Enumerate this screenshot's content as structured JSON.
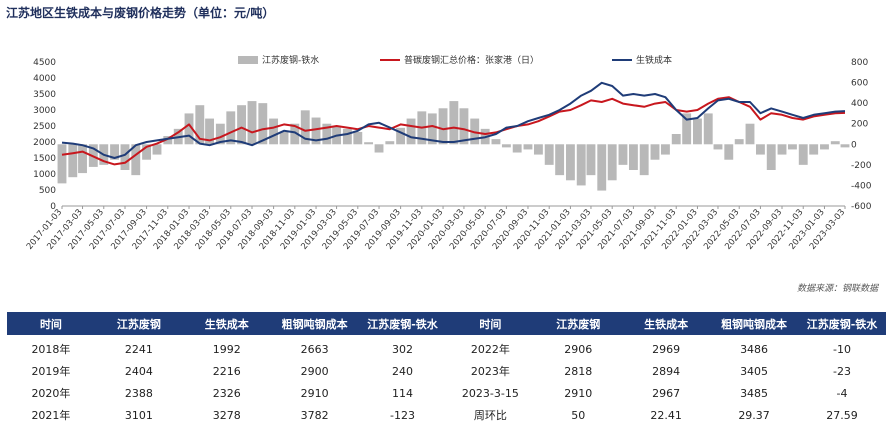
{
  "title": "江苏地区生铁成本与废钢价格走势（单位：元/吨）",
  "source": "数据来源：钢联数据",
  "colors": {
    "spread": "#b8b8b8",
    "scrap": "#c8171e",
    "pigiron": "#1f3c78",
    "header_bg": "#1f3c78",
    "positive": "#d42424",
    "negative": "#2a9a3a"
  },
  "chart_data": {
    "type": "line",
    "title": "江苏地区生铁成本与废钢价格走势（单位：元/吨）",
    "left_axis": {
      "min": 0,
      "max": 4500,
      "ticks": [
        0,
        500,
        1000,
        1500,
        2000,
        2500,
        3000,
        3500,
        4000,
        4500
      ]
    },
    "right_axis": {
      "min": -600,
      "max": 800,
      "ticks": [
        -600,
        -400,
        -200,
        0,
        200,
        400,
        600,
        800
      ]
    },
    "x_ticks": [
      "2017-01-03",
      "2017-03-03",
      "2017-05-03",
      "2017-07-03",
      "2017-09-03",
      "2017-11-03",
      "2018-01-03",
      "2018-03-03",
      "2018-05-03",
      "2018-07-03",
      "2018-09-03",
      "2018-11-03",
      "2019-01-03",
      "2019-03-03",
      "2019-05-03",
      "2019-07-03",
      "2019-09-03",
      "2019-11-03",
      "2020-01-03",
      "2020-03-03",
      "2020-05-03",
      "2020-07-03",
      "2020-09-03",
      "2020-11-03",
      "2021-01-03",
      "2021-03-03",
      "2021-05-03",
      "2021-07-03",
      "2021-09-03",
      "2021-11-03",
      "2022-01-03",
      "2022-03-03",
      "2022-05-03",
      "2022-07-03",
      "2022-09-03",
      "2022-11-03",
      "2023-01-03",
      "2023-03-03"
    ],
    "legend": [
      "江苏废钢-铁水",
      "普碳废钢汇总价格：张家港（日）",
      "生铁成本"
    ],
    "legend_position": "top",
    "series": [
      {
        "name": "江苏废钢-铁水",
        "kind": "area",
        "axis": "right",
        "x": [
          "2017-01-03",
          "2017-02-03",
          "2017-03-03",
          "2017-04-03",
          "2017-05-03",
          "2017-06-03",
          "2017-07-03",
          "2017-08-03",
          "2017-09-03",
          "2017-10-03",
          "2017-11-03",
          "2017-12-03",
          "2018-01-03",
          "2018-02-03",
          "2018-03-03",
          "2018-04-03",
          "2018-05-03",
          "2018-06-03",
          "2018-07-03",
          "2018-08-03",
          "2018-09-03",
          "2018-10-03",
          "2018-11-03",
          "2018-12-03",
          "2019-01-03",
          "2019-02-03",
          "2019-03-03",
          "2019-04-03",
          "2019-05-03",
          "2019-06-03",
          "2019-07-03",
          "2019-08-03",
          "2019-09-03",
          "2019-10-03",
          "2019-11-03",
          "2019-12-03",
          "2020-01-03",
          "2020-02-03",
          "2020-03-03",
          "2020-04-03",
          "2020-05-03",
          "2020-06-03",
          "2020-07-03",
          "2020-08-03",
          "2020-09-03",
          "2020-10-03",
          "2020-11-03",
          "2020-12-03",
          "2021-01-03",
          "2021-02-03",
          "2021-03-03",
          "2021-04-03",
          "2021-05-03",
          "2021-06-03",
          "2021-07-03",
          "2021-08-03",
          "2021-09-03",
          "2021-10-03",
          "2021-11-03",
          "2021-12-03",
          "2022-01-03",
          "2022-02-03",
          "2022-03-03",
          "2022-04-03",
          "2022-05-03",
          "2022-06-03",
          "2022-07-03",
          "2022-08-03",
          "2022-09-03",
          "2022-10-03",
          "2022-11-03",
          "2022-12-03",
          "2023-01-03",
          "2023-02-03",
          "2023-03-03"
        ],
        "values": [
          -380,
          -320,
          -280,
          -220,
          -200,
          -150,
          -250,
          -300,
          -150,
          -100,
          80,
          150,
          300,
          380,
          250,
          200,
          320,
          380,
          420,
          400,
          250,
          120,
          200,
          330,
          260,
          200,
          180,
          150,
          120,
          20,
          -80,
          30,
          160,
          250,
          320,
          300,
          350,
          420,
          350,
          250,
          150,
          50,
          -30,
          -80,
          -50,
          -100,
          -200,
          -300,
          -350,
          -400,
          -300,
          -450,
          -350,
          -200,
          -250,
          -300,
          -150,
          -100,
          100,
          300,
          250,
          300,
          -50,
          -150,
          50,
          200,
          -100,
          -250,
          -100,
          -50,
          -200,
          -100,
          -50,
          30,
          -30
        ]
      },
      {
        "name": "普碳废钢汇总价格：张家港（日）",
        "kind": "line",
        "axis": "left",
        "x": [
          "2017-01-03",
          "2017-02-03",
          "2017-03-03",
          "2017-04-03",
          "2017-05-03",
          "2017-06-03",
          "2017-07-03",
          "2017-08-03",
          "2017-09-03",
          "2017-10-03",
          "2017-11-03",
          "2017-12-03",
          "2018-01-03",
          "2018-02-03",
          "2018-03-03",
          "2018-04-03",
          "2018-05-03",
          "2018-06-03",
          "2018-07-03",
          "2018-08-03",
          "2018-09-03",
          "2018-10-03",
          "2018-11-03",
          "2018-12-03",
          "2019-01-03",
          "2019-02-03",
          "2019-03-03",
          "2019-04-03",
          "2019-05-03",
          "2019-06-03",
          "2019-07-03",
          "2019-08-03",
          "2019-09-03",
          "2019-10-03",
          "2019-11-03",
          "2019-12-03",
          "2020-01-03",
          "2020-02-03",
          "2020-03-03",
          "2020-04-03",
          "2020-05-03",
          "2020-06-03",
          "2020-07-03",
          "2020-08-03",
          "2020-09-03",
          "2020-10-03",
          "2020-11-03",
          "2020-12-03",
          "2021-01-03",
          "2021-02-03",
          "2021-03-03",
          "2021-04-03",
          "2021-05-03",
          "2021-06-03",
          "2021-07-03",
          "2021-08-03",
          "2021-09-03",
          "2021-10-03",
          "2021-11-03",
          "2021-12-03",
          "2022-01-03",
          "2022-02-03",
          "2022-03-03",
          "2022-04-03",
          "2022-05-03",
          "2022-06-03",
          "2022-07-03",
          "2022-08-03",
          "2022-09-03",
          "2022-10-03",
          "2022-11-03",
          "2022-12-03",
          "2023-01-03",
          "2023-02-03",
          "2023-03-03"
        ],
        "values": [
          1600,
          1650,
          1700,
          1550,
          1400,
          1300,
          1350,
          1600,
          1850,
          1950,
          2100,
          2300,
          2550,
          2100,
          2050,
          2150,
          2300,
          2450,
          2300,
          2400,
          2450,
          2550,
          2500,
          2350,
          2400,
          2450,
          2500,
          2450,
          2400,
          2500,
          2450,
          2400,
          2550,
          2500,
          2450,
          2500,
          2400,
          2450,
          2400,
          2300,
          2250,
          2300,
          2400,
          2500,
          2550,
          2650,
          2800,
          2950,
          3000,
          3150,
          3300,
          3250,
          3350,
          3200,
          3150,
          3100,
          3200,
          3250,
          3000,
          2950,
          3000,
          3200,
          3350,
          3400,
          3250,
          3100,
          2700,
          2900,
          2850,
          2750,
          2700,
          2800,
          2850,
          2900,
          2910
        ]
      },
      {
        "name": "生铁成本",
        "kind": "line",
        "axis": "left",
        "x": [
          "2017-01-03",
          "2017-02-03",
          "2017-03-03",
          "2017-04-03",
          "2017-05-03",
          "2017-06-03",
          "2017-07-03",
          "2017-08-03",
          "2017-09-03",
          "2017-10-03",
          "2017-11-03",
          "2017-12-03",
          "2018-01-03",
          "2018-02-03",
          "2018-03-03",
          "2018-04-03",
          "2018-05-03",
          "2018-06-03",
          "2018-07-03",
          "2018-08-03",
          "2018-09-03",
          "2018-10-03",
          "2018-11-03",
          "2018-12-03",
          "2019-01-03",
          "2019-02-03",
          "2019-03-03",
          "2019-04-03",
          "2019-05-03",
          "2019-06-03",
          "2019-07-03",
          "2019-08-03",
          "2019-09-03",
          "2019-10-03",
          "2019-11-03",
          "2019-12-03",
          "2020-01-03",
          "2020-02-03",
          "2020-03-03",
          "2020-04-03",
          "2020-05-03",
          "2020-06-03",
          "2020-07-03",
          "2020-08-03",
          "2020-09-03",
          "2020-10-03",
          "2020-11-03",
          "2020-12-03",
          "2021-01-03",
          "2021-02-03",
          "2021-03-03",
          "2021-04-03",
          "2021-05-03",
          "2021-06-03",
          "2021-07-03",
          "2021-08-03",
          "2021-09-03",
          "2021-10-03",
          "2021-11-03",
          "2021-12-03",
          "2022-01-03",
          "2022-02-03",
          "2022-03-03",
          "2022-04-03",
          "2022-05-03",
          "2022-06-03",
          "2022-07-03",
          "2022-08-03",
          "2022-09-03",
          "2022-10-03",
          "2022-11-03",
          "2022-12-03",
          "2023-01-03",
          "2023-02-03",
          "2023-03-03"
        ],
        "values": [
          1980,
          1950,
          1900,
          1800,
          1600,
          1500,
          1600,
          1900,
          2000,
          2050,
          2100,
          2150,
          2200,
          1950,
          1900,
          2000,
          2050,
          2000,
          1900,
          2050,
          2200,
          2350,
          2300,
          2100,
          2050,
          2100,
          2200,
          2250,
          2350,
          2550,
          2600,
          2450,
          2300,
          2150,
          2100,
          2050,
          2000,
          2000,
          2050,
          2100,
          2150,
          2250,
          2450,
          2500,
          2650,
          2750,
          2850,
          3000,
          3200,
          3450,
          3600,
          3850,
          3750,
          3450,
          3500,
          3450,
          3500,
          3400,
          3000,
          2700,
          2750,
          3050,
          3300,
          3350,
          3250,
          3250,
          2900,
          3050,
          2950,
          2850,
          2750,
          2850,
          2900,
          2950,
          2967
        ]
      }
    ]
  },
  "table": {
    "headers": [
      "时间",
      "江苏废钢",
      "生铁成本",
      "粗钢吨钢成本",
      "江苏废钢-铁水",
      "时间",
      "江苏废钢",
      "生铁成本",
      "粗钢吨钢成本",
      "江苏废钢-铁水"
    ],
    "rows": [
      [
        "2018年",
        "2241",
        "1992",
        "2663",
        "302",
        "2022年",
        "2906",
        "2969",
        "3486",
        "-10"
      ],
      [
        "2019年",
        "2404",
        "2216",
        "2900",
        "240",
        "2023年",
        "2818",
        "2894",
        "3405",
        "-23"
      ],
      [
        "2020年",
        "2388",
        "2326",
        "2910",
        "114",
        "2023-3-15",
        "2910",
        "2967",
        "3485",
        "-4"
      ],
      [
        "2021年",
        "3101",
        "3278",
        "3782",
        "-123",
        "周环比",
        "50",
        "22.41",
        "29.37",
        "27.59"
      ]
    ]
  }
}
